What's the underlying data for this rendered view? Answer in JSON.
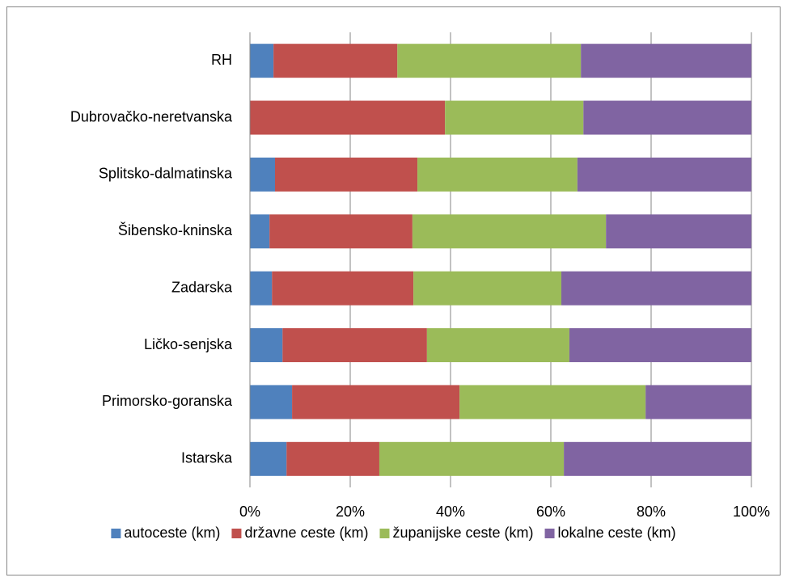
{
  "chart_data": {
    "type": "stacked_bar_horizontal",
    "categories": [
      "RH",
      "Dubrovačko-neretvanska",
      "Splitsko-dalmatinska",
      "Šibensko-kninska",
      "Zadarska",
      "Ličko-senjska",
      "Primorsko-goranska",
      "Istarska"
    ],
    "series": [
      {
        "name": "autoceste (km)",
        "color": "#4f81bd",
        "values": [
          4.7,
          0,
          5.0,
          3.9,
          4.4,
          6.5,
          8.4,
          7.3
        ]
      },
      {
        "name": "državne ceste (km)",
        "color": "#c0504d",
        "values": [
          24.7,
          38.9,
          28.4,
          28.5,
          28.2,
          28.8,
          33.4,
          18.5
        ]
      },
      {
        "name": "županijske ceste (km)",
        "color": "#9bbb59",
        "values": [
          36.6,
          27.6,
          31.9,
          38.6,
          29.5,
          28.4,
          37.1,
          36.8
        ]
      },
      {
        "name": "lokalne ceste (km)",
        "color": "#8064a2",
        "values": [
          34.0,
          33.5,
          34.7,
          29.0,
          37.9,
          36.3,
          21.1,
          37.4
        ]
      }
    ],
    "xlim": [
      0,
      100
    ],
    "xticks": [
      {
        "value": 0,
        "label": "0%"
      },
      {
        "value": 20,
        "label": "20%"
      },
      {
        "value": 40,
        "label": "40%"
      },
      {
        "value": 60,
        "label": "60%"
      },
      {
        "value": 80,
        "label": "80%"
      },
      {
        "value": 100,
        "label": "100%"
      }
    ],
    "grid": true,
    "legend": "bottom"
  }
}
